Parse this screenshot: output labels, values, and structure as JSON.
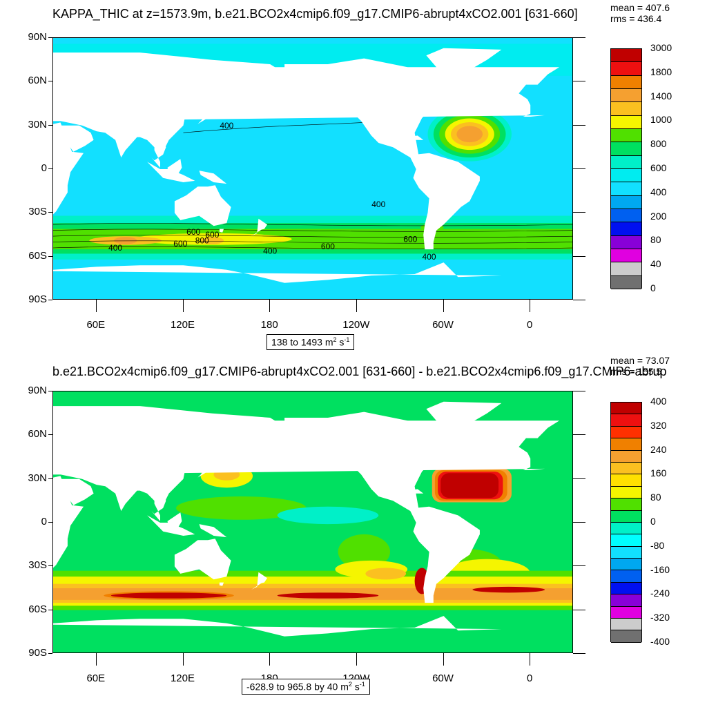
{
  "top": {
    "title": "KAPPA_THIC at z=1573.9m, b.e21.BCO2x4cmip6.f09_g17.CMIP6-abrupt4xCO2.001 [631-660]",
    "mean": "mean = 407.6",
    "rms": "rms = 436.4",
    "range_text": "138 to 1493 m",
    "unit_exp1": "2",
    "unit_s": " s",
    "unit_exp2": "-1",
    "contour_labels": [
      {
        "text": "400",
        "lon": 150,
        "lat": 28
      },
      {
        "text": "400",
        "lon": 255,
        "lat": -26
      },
      {
        "text": "600",
        "lon": 127,
        "lat": -45
      },
      {
        "text": "600",
        "lon": 140,
        "lat": -47
      },
      {
        "text": "800",
        "lon": 133,
        "lat": -51
      },
      {
        "text": "600",
        "lon": 118,
        "lat": -53
      },
      {
        "text": "400",
        "lon": 73,
        "lat": -56
      },
      {
        "text": "400",
        "lon": 180,
        "lat": -58
      },
      {
        "text": "600",
        "lon": 220,
        "lat": -55
      },
      {
        "text": "600",
        "lon": 277,
        "lat": -50
      },
      {
        "text": "400",
        "lon": 290,
        "lat": -62
      }
    ],
    "colorbar": {
      "labels": [
        "3000",
        "1800",
        "1400",
        "1000",
        "800",
        "600",
        "400",
        "200",
        "80",
        "40",
        "0"
      ],
      "colors": [
        "#c00000",
        "#ee1010",
        "#f08000",
        "#f5a030",
        "#fbc020",
        "#f5f500",
        "#50e000",
        "#00e060",
        "#00f0c8",
        "#00ecf0",
        "#12e0ff",
        "#00a8f0",
        "#0060f0",
        "#0010f0",
        "#8800d8",
        "#e000e0",
        "#cccccc",
        "#707070"
      ]
    }
  },
  "bottom": {
    "title": "b.e21.BCO2x4cmip6.f09_g17.CMIP6-abrupt4xCO2.001 [631-660] - b.e21.BCO2x4cmip6.f09_g17.CMIP6-abrup",
    "mean": "mean = 73.07",
    "rms": "rms = 155.5",
    "range_text": "-628.9 to 965.8 by 40 m",
    "unit_exp1": "2",
    "unit_s": " s",
    "unit_exp2": "-1",
    "colorbar": {
      "labels": [
        "400",
        "320",
        "240",
        "160",
        "80",
        "0",
        "-80",
        "-160",
        "-240",
        "-320",
        "-400"
      ],
      "colors": [
        "#c00000",
        "#ee1010",
        "#ff3000",
        "#f08000",
        "#f5a030",
        "#fbc020",
        "#ffe000",
        "#f5f500",
        "#50e000",
        "#00e060",
        "#00f0c8",
        "#00ffff",
        "#12e0ff",
        "#00a8f0",
        "#0060f0",
        "#0010f0",
        "#8800d8",
        "#e000e0",
        "#cccccc",
        "#707070"
      ]
    }
  },
  "axes": {
    "lat_labels": [
      "90N",
      "60N",
      "30N",
      "0",
      "30S",
      "60S",
      "90S"
    ],
    "lon_labels": [
      "60E",
      "120E",
      "180",
      "120W",
      "60W",
      "0"
    ],
    "lon_values": [
      60,
      120,
      180,
      240,
      300,
      360
    ]
  },
  "fields": {
    "top": {
      "base": "#12e0ff",
      "north_band": "#00ecf0",
      "so_bands": [
        "#00f0c8",
        "#00e060",
        "#50e000",
        "#f5f500",
        "#fbc020"
      ],
      "gulf_colors": [
        "#00f0c8",
        "#00e060",
        "#50e000",
        "#f5f500",
        "#fbc020",
        "#f5a030"
      ],
      "hot_spots": [
        {
          "lon": 80,
          "lat": -49,
          "c": "#f5a030"
        },
        {
          "lon": 140,
          "lat": -49,
          "c": "#fbc020"
        },
        {
          "lon": 292,
          "lat": -40,
          "c": "#50e000"
        }
      ]
    },
    "bottom": {
      "base": "#00e060",
      "patches": [
        {
          "lon": 160,
          "lat": 10,
          "rx": 45,
          "ry": 8,
          "c": "#50e000"
        },
        {
          "lon": 150,
          "lat": 32,
          "rx": 18,
          "ry": 8,
          "c": "#f5f500"
        },
        {
          "lon": 150,
          "lat": 33,
          "rx": 9,
          "ry": 4,
          "c": "#fbc020"
        },
        {
          "lon": 220,
          "lat": 5,
          "rx": 35,
          "ry": 6,
          "c": "#00f0c8"
        },
        {
          "lon": 245,
          "lat": -20,
          "rx": 18,
          "ry": 12,
          "c": "#50e000"
        },
        {
          "lon": 300,
          "lat": 48,
          "rx": 25,
          "ry": 8,
          "c": "#00ffff"
        },
        {
          "lon": 303,
          "lat": 55,
          "rx": 10,
          "ry": 4,
          "c": "#00a8f0"
        },
        {
          "lon": 315,
          "lat": -28,
          "rx": 25,
          "ry": 10,
          "c": "#50e000"
        },
        {
          "lon": 330,
          "lat": -35,
          "rx": 30,
          "ry": 10,
          "c": "#f5f500"
        }
      ],
      "so_bands": [
        "#50e000",
        "#f5f500",
        "#fbc020",
        "#f5a030",
        "#f08000"
      ],
      "so_core": "#c00000",
      "gulf_colors": [
        "#f5a030",
        "#f08000",
        "#ee1010",
        "#c00000"
      ],
      "pac_dipole": [
        {
          "lon": 250,
          "lat": -32,
          "rx": 25,
          "ry": 6,
          "c": "#f5f500"
        },
        {
          "lon": 260,
          "lat": -35,
          "rx": 14,
          "ry": 4,
          "c": "#fbc020"
        },
        {
          "lon": 285,
          "lat": -40,
          "rx": 5,
          "ry": 9,
          "c": "#c00000"
        }
      ]
    },
    "land_color": "#ffffff"
  }
}
